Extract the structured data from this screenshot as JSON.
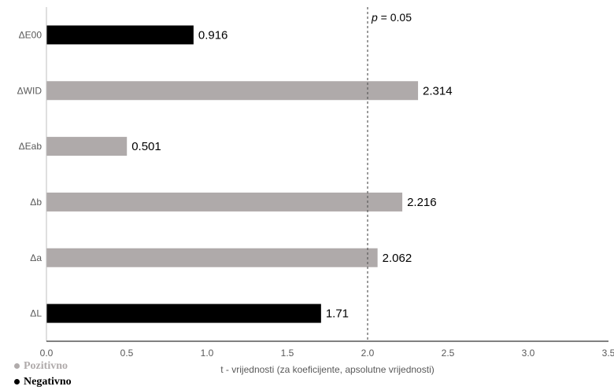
{
  "chart_data": {
    "type": "bar",
    "orientation": "horizontal",
    "categories": [
      "ΔE00",
      "ΔWID",
      "ΔEab",
      "Δb",
      "Δa",
      "ΔL"
    ],
    "values": [
      0.916,
      2.314,
      0.501,
      2.216,
      2.062,
      1.71
    ],
    "value_labels": [
      "0.916",
      "2.314",
      "0.501",
      "2.216",
      "2.062",
      "1.71"
    ],
    "sign": [
      "Negativno",
      "Pozitivno",
      "Pozitivno",
      "Pozitivno",
      "Pozitivno",
      "Negativno"
    ],
    "xlabel": "t - vrijednosti (za koeficijente, apsolutne vrijednosti)",
    "xlim": [
      0.0,
      3.5
    ],
    "xticks": [
      "0.0",
      "0.5",
      "1.0",
      "1.5",
      "2.0",
      "2.5",
      "3.0",
      "3.5"
    ],
    "reference_line": {
      "x": 2.0,
      "style": "dashed",
      "label_var": "p",
      "label_rest": " = 0.05"
    },
    "grid": false,
    "legend": {
      "placement": "bottom-left",
      "items": [
        {
          "label": "Pozitivno",
          "color": "#b0abab"
        },
        {
          "label": "Negativno",
          "color": "#000000"
        }
      ]
    },
    "colors": {
      "Pozitivno": "#afaaaa",
      "Negativno": "#000000"
    }
  }
}
